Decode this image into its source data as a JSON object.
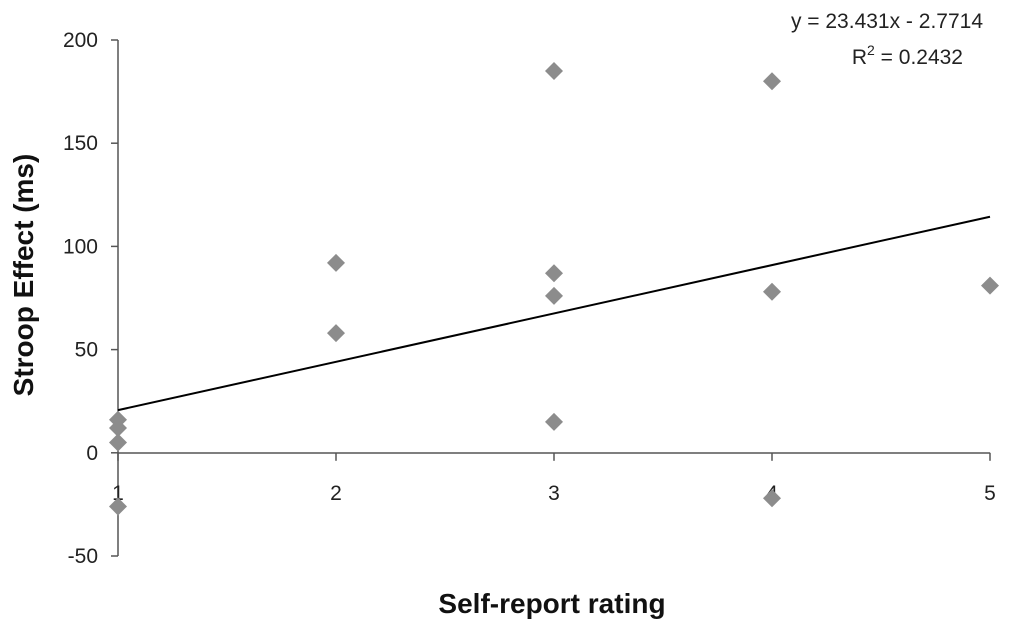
{
  "chart_data": {
    "type": "scatter",
    "xlabel": "Self-report rating",
    "ylabel": "Stroop Effect (ms)",
    "xlim": [
      1,
      5
    ],
    "ylim": [
      -50,
      200
    ],
    "x_ticks": [
      1,
      2,
      3,
      4,
      5
    ],
    "y_ticks": [
      200,
      150,
      100,
      50,
      0,
      -50
    ],
    "grid": false,
    "marker": "diamond",
    "marker_color": "#8c8c8c",
    "series": [
      {
        "points": [
          {
            "x": 1,
            "y": 16
          },
          {
            "x": 1,
            "y": 12
          },
          {
            "x": 1,
            "y": 5
          },
          {
            "x": 1,
            "y": -26
          },
          {
            "x": 2,
            "y": 92
          },
          {
            "x": 2,
            "y": 58
          },
          {
            "x": 3,
            "y": 185
          },
          {
            "x": 3,
            "y": 87
          },
          {
            "x": 3,
            "y": 76
          },
          {
            "x": 3,
            "y": 15
          },
          {
            "x": 4,
            "y": 180
          },
          {
            "x": 4,
            "y": 78
          },
          {
            "x": 4,
            "y": -22
          },
          {
            "x": 5,
            "y": 81
          }
        ]
      }
    ],
    "trendline": {
      "slope": 23.431,
      "intercept": -2.7714,
      "x_range": [
        1,
        5
      ],
      "color": "#000000"
    },
    "annotations": {
      "equation": "y = 23.431x - 2.7714",
      "r2_label": "R",
      "r2_superscript": "2",
      "r2_value": " = 0.2432"
    }
  }
}
